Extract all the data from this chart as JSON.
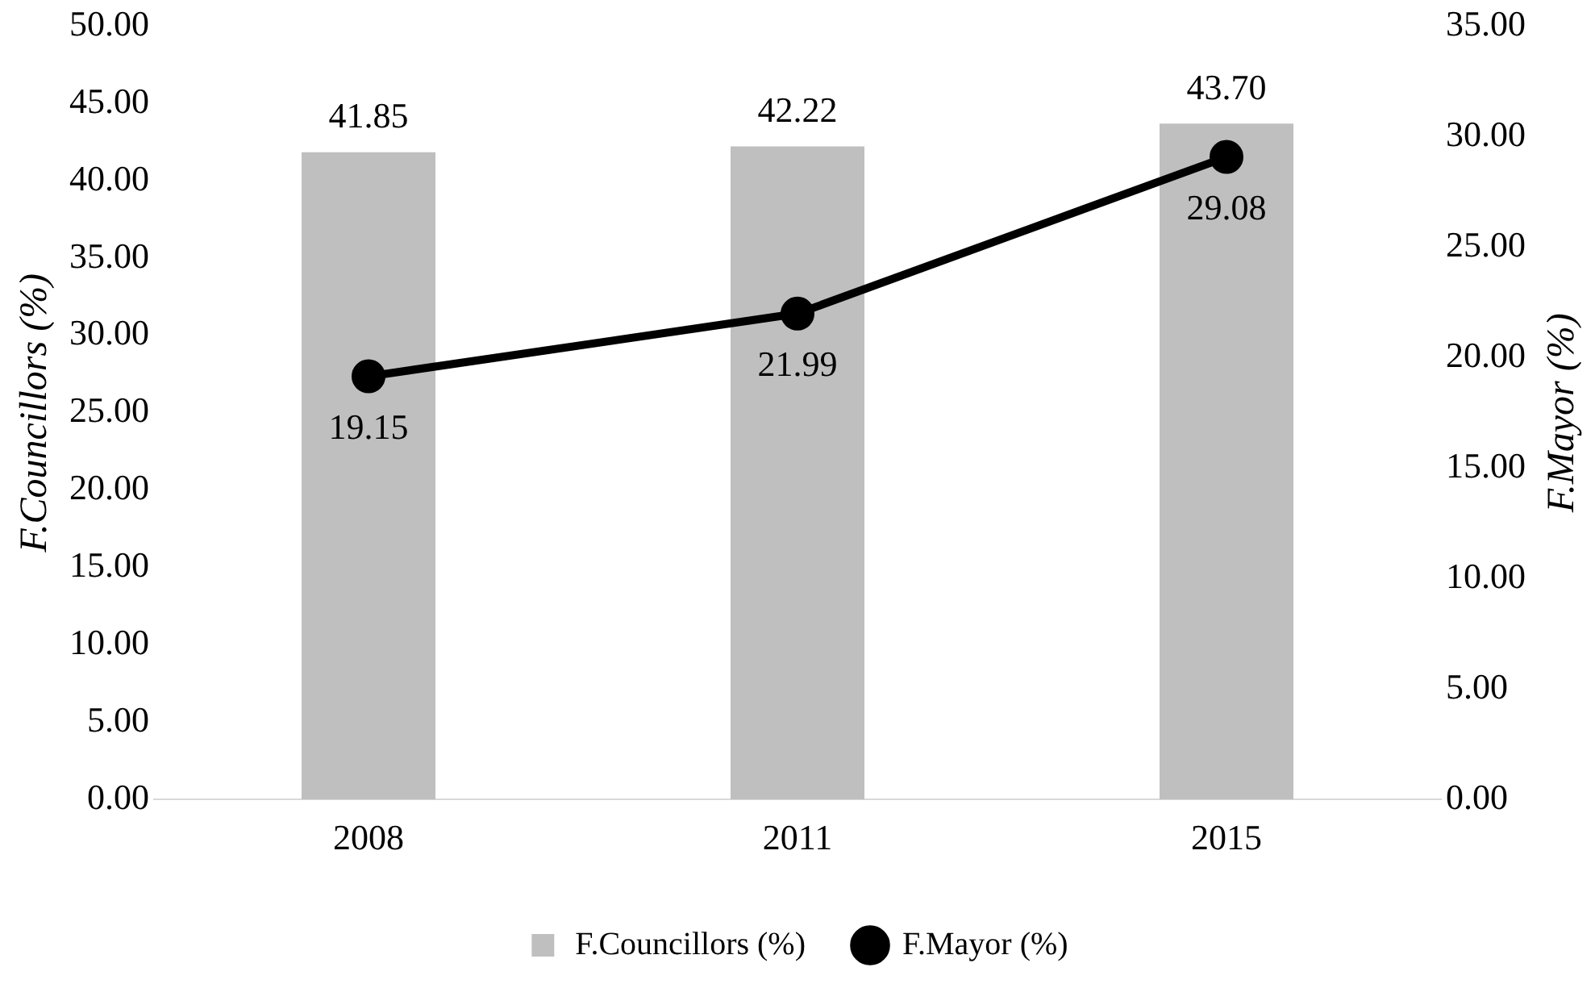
{
  "chart_data": {
    "type": "bar",
    "ylabel": "F.Councillors (%)",
    "y2label": "F.Mayor (%)",
    "categories": [
      "2008",
      "2011",
      "2015"
    ],
    "series": [
      {
        "name": "F.Councillors (%)",
        "color": "#bfbfbf",
        "values": [
          41.85,
          42.22,
          43.7
        ],
        "value_labels": [
          "41.85",
          "42.22",
          "43.70"
        ]
      },
      {
        "name": "F.Mayor (%)",
        "type": "line",
        "axis": "y2",
        "color": "#000000",
        "values": [
          19.15,
          21.99,
          29.08
        ],
        "value_labels": [
          "19.15",
          "21.99",
          "29.08"
        ]
      }
    ],
    "ylim": [
      0,
      50
    ],
    "yticks": [
      {
        "value": 0,
        "label": "0.00"
      },
      {
        "value": 5,
        "label": "5.00"
      },
      {
        "value": 10,
        "label": "10.00"
      },
      {
        "value": 15,
        "label": "15.00"
      },
      {
        "value": 20,
        "label": "20.00"
      },
      {
        "value": 25,
        "label": "25.00"
      },
      {
        "value": 30,
        "label": "30.00"
      },
      {
        "value": 35,
        "label": "35.00"
      },
      {
        "value": 40,
        "label": "40.00"
      },
      {
        "value": 45,
        "label": "45.00"
      },
      {
        "value": 50,
        "label": "50.00"
      }
    ],
    "y2lim": [
      0,
      35
    ],
    "y2ticks": [
      {
        "value": 0,
        "label": "0.00"
      },
      {
        "value": 5,
        "label": "5.00"
      },
      {
        "value": 10,
        "label": "10.00"
      },
      {
        "value": 15,
        "label": "15.00"
      },
      {
        "value": 20,
        "label": "20.00"
      },
      {
        "value": 25,
        "label": "25.00"
      },
      {
        "value": 30,
        "label": "30.00"
      },
      {
        "value": 35,
        "label": "35.00"
      }
    ],
    "legend": "bottom",
    "marker": "circle",
    "grid": false
  }
}
